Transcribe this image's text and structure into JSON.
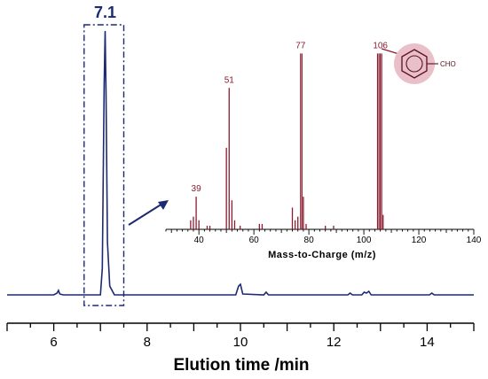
{
  "chart_data": [
    {
      "type": "line",
      "panel": "chromatogram",
      "xlabel": "Elution time /min",
      "ylabel": "",
      "xlim": [
        5,
        15
      ],
      "xticks": [
        6,
        8,
        10,
        12,
        14
      ],
      "grid": false,
      "highlight": {
        "label": "7.1",
        "x_range": [
          6.65,
          7.5
        ]
      },
      "series": [
        {
          "color": "#1c2a72",
          "x": [
            5.0,
            6.0,
            6.07,
            6.1,
            6.13,
            6.2,
            7.0,
            7.04,
            7.08,
            7.1,
            7.12,
            7.15,
            7.2,
            7.3,
            9.9,
            9.96,
            10.0,
            10.05,
            10.5,
            10.55,
            10.6,
            12.3,
            12.35,
            12.4,
            12.6,
            12.65,
            12.7,
            12.75,
            12.8,
            14.05,
            14.1,
            14.15,
            15.0
          ],
          "y": [
            0,
            0,
            2,
            5,
            1,
            0,
            0,
            30,
            240,
            300,
            230,
            60,
            10,
            0,
            0,
            10,
            12,
            1,
            0,
            3,
            0,
            0,
            2,
            0,
            0,
            3,
            2,
            4,
            0,
            0,
            2,
            0,
            0
          ]
        }
      ]
    },
    {
      "type": "bar",
      "panel": "mass-spectrum-inset",
      "xlabel": "Mass-to-Charge (m/z)",
      "ylabel": "",
      "xlim": [
        28,
        140
      ],
      "xticks": [
        40,
        60,
        80,
        100,
        120,
        140
      ],
      "ylim": [
        0,
        105
      ],
      "grid": false,
      "color": "#8b1c2e",
      "x": [
        37,
        38,
        39,
        40,
        43,
        44,
        50,
        51,
        52,
        53,
        55,
        62,
        63,
        74,
        75,
        76,
        77,
        78,
        79,
        86,
        89,
        105,
        106,
        107
      ],
      "values": [
        5,
        7,
        18,
        5,
        2,
        2,
        45,
        78,
        16,
        5,
        2,
        3,
        3,
        12,
        5,
        7,
        97,
        18,
        3,
        2,
        2,
        97,
        97,
        8
      ],
      "peak_labels": [
        {
          "x": 39,
          "label": "39"
        },
        {
          "x": 51,
          "label": "51"
        },
        {
          "x": 77,
          "label": "77"
        },
        {
          "x": 106,
          "label": "106"
        }
      ],
      "structure_label": "CHO"
    }
  ]
}
